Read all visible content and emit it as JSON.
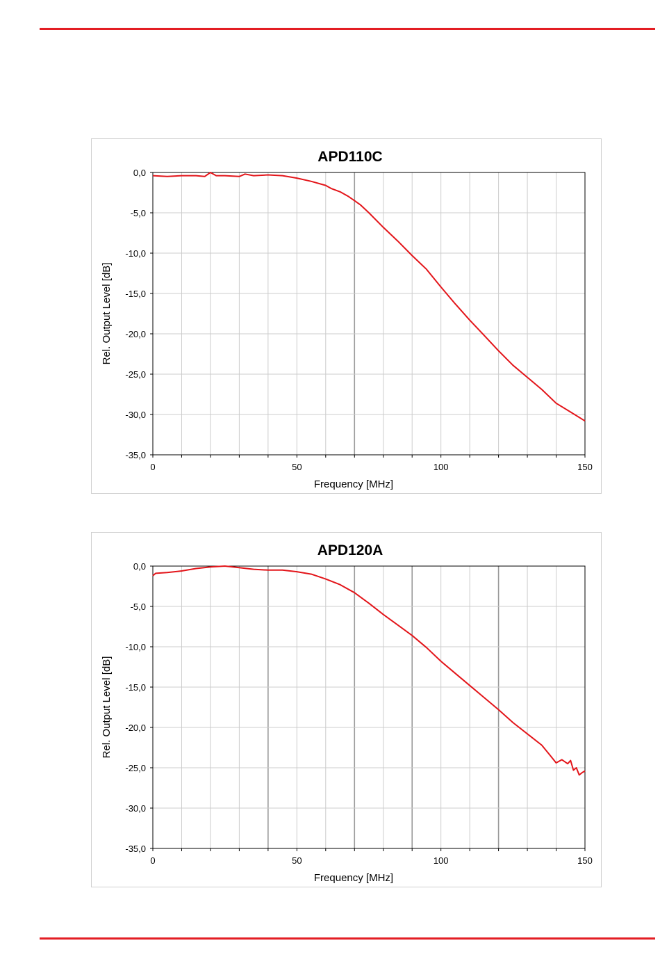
{
  "colors": {
    "rule": "#e31e24",
    "series": "#e3151a",
    "grid_minor": "#cccccc",
    "grid_major": "#9a9a9a"
  },
  "chart_data": [
    {
      "type": "line",
      "title": "APD110C",
      "xlabel": "Frequency [MHz]",
      "ylabel": "Rel. Output Level [dB]",
      "xlim": [
        0,
        150
      ],
      "ylim": [
        -35,
        0
      ],
      "x_ticks": [
        0,
        50,
        100,
        150
      ],
      "x_tick_labels": [
        "0",
        "50",
        "100",
        "150"
      ],
      "y_ticks": [
        0,
        -5,
        -10,
        -15,
        -20,
        -25,
        -30,
        -35
      ],
      "y_tick_labels": [
        "0,0",
        "-5,0",
        "-10,0",
        "-15,0",
        "-20,0",
        "-25,0",
        "-30,0",
        "-35,0"
      ],
      "x_minor_step": 10,
      "x_major_grid": [
        70
      ],
      "grid": true,
      "legend": "none",
      "series": [
        {
          "x": [
            0,
            5,
            10,
            15,
            18,
            20,
            22,
            25,
            30,
            32,
            35,
            40,
            45,
            50,
            55,
            60,
            62,
            65,
            68,
            70,
            72,
            75,
            80,
            85,
            90,
            95,
            100,
            105,
            110,
            115,
            120,
            125,
            130,
            135,
            140,
            145,
            150
          ],
          "y": [
            -0.4,
            -0.5,
            -0.4,
            -0.4,
            -0.5,
            0.0,
            -0.4,
            -0.4,
            -0.5,
            -0.2,
            -0.4,
            -0.3,
            -0.4,
            -0.7,
            -1.1,
            -1.6,
            -2.0,
            -2.4,
            -3.0,
            -3.5,
            -4.0,
            -5.0,
            -6.8,
            -8.5,
            -10.3,
            -12.0,
            -14.2,
            -16.3,
            -18.3,
            -20.2,
            -22.1,
            -23.9,
            -25.4,
            -26.9,
            -28.6,
            -29.7,
            -30.8
          ]
        }
      ]
    },
    {
      "type": "line",
      "title": "APD120A",
      "xlabel": "Frequency [MHz]",
      "ylabel": "Rel. Output Level [dB]",
      "xlim": [
        0,
        150
      ],
      "ylim": [
        -35,
        0
      ],
      "x_ticks": [
        0,
        50,
        100,
        150
      ],
      "x_tick_labels": [
        "0",
        "50",
        "100",
        "150"
      ],
      "y_ticks": [
        0,
        -5,
        -10,
        -15,
        -20,
        -25,
        -30,
        -35
      ],
      "y_tick_labels": [
        "0,0",
        "-5,0",
        "-10,0",
        "-15,0",
        "-20,0",
        "-25,0",
        "-30,0",
        "-35,0"
      ],
      "x_minor_step": 10,
      "x_major_grid": [
        40,
        70,
        90,
        120
      ],
      "grid": true,
      "legend": "none",
      "series": [
        {
          "x": [
            0,
            1,
            5,
            10,
            15,
            20,
            25,
            30,
            35,
            40,
            45,
            50,
            55,
            60,
            65,
            70,
            75,
            80,
            85,
            90,
            95,
            100,
            105,
            110,
            115,
            120,
            125,
            130,
            135,
            138,
            140,
            142,
            144,
            145,
            146,
            147,
            148,
            149,
            150
          ],
          "y": [
            -1.2,
            -0.9,
            -0.8,
            -0.6,
            -0.3,
            -0.1,
            0.0,
            -0.2,
            -0.4,
            -0.5,
            -0.5,
            -0.7,
            -1.0,
            -1.6,
            -2.3,
            -3.3,
            -4.6,
            -6.0,
            -7.3,
            -8.6,
            -10.1,
            -11.8,
            -13.3,
            -14.8,
            -16.3,
            -17.8,
            -19.4,
            -20.8,
            -22.2,
            -23.5,
            -24.4,
            -24.0,
            -24.5,
            -24.1,
            -25.3,
            -25.0,
            -25.9,
            -25.6,
            -25.4
          ]
        }
      ]
    }
  ]
}
